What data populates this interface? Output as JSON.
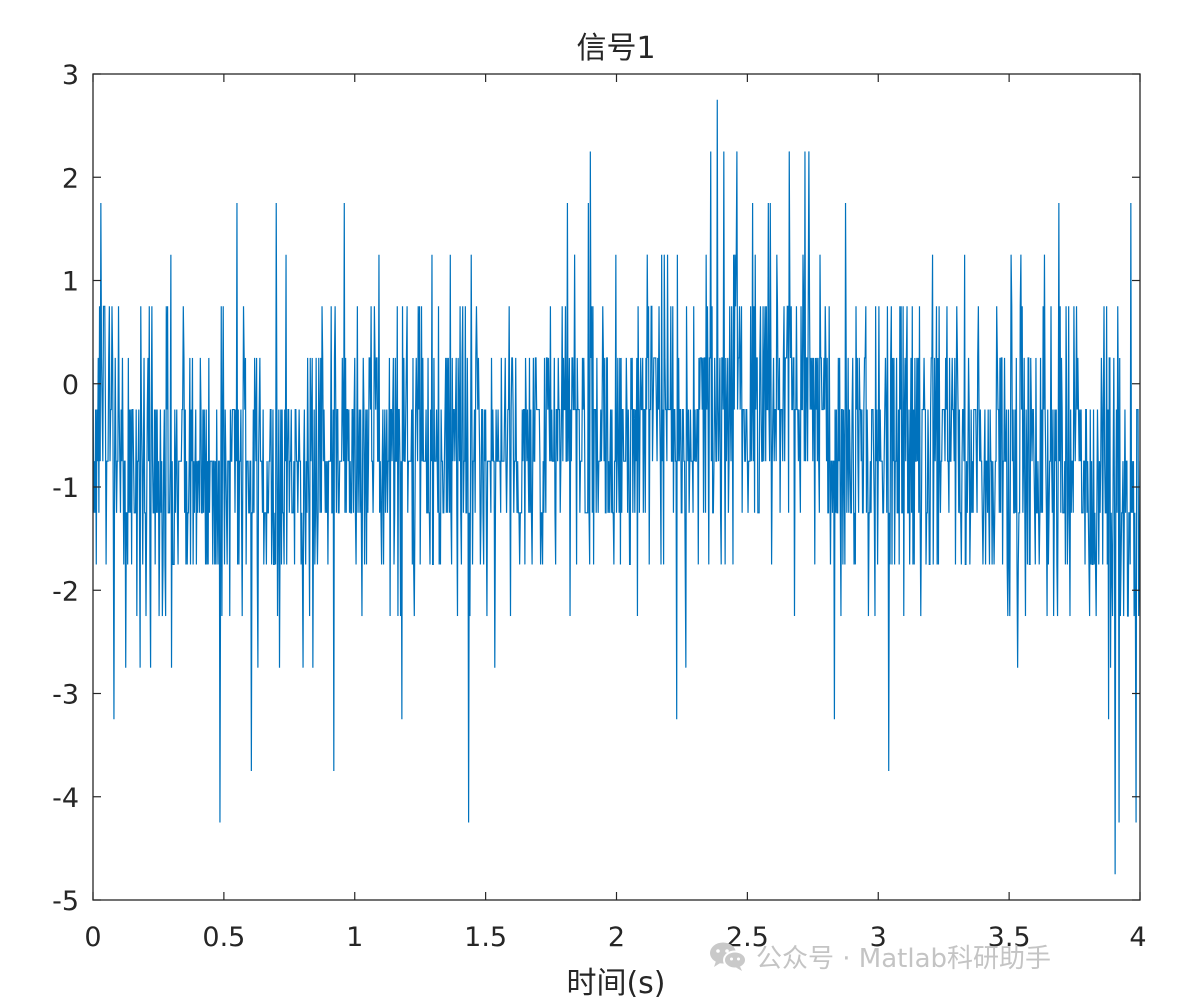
{
  "chart_data": {
    "type": "line",
    "title": "信号1",
    "xlabel": "时间(s)",
    "ylabel": "",
    "xlim": [
      0,
      4
    ],
    "ylim": [
      -5,
      3
    ],
    "x_ticks": [
      "0",
      "0.5",
      "1",
      "1.5",
      "2",
      "2.5",
      "3",
      "3.5",
      "4"
    ],
    "y_ticks": [
      "3",
      "2",
      "1",
      "0",
      "-1",
      "-2",
      "-3",
      "-4",
      "-5"
    ],
    "grid": false,
    "line_color": "#0072BD",
    "sampling": {
      "start": 0,
      "end": 4,
      "count": 1601
    },
    "levels": [
      -4.75,
      -4.25,
      -3.75,
      -3.25,
      -2.75,
      -2.25,
      -1.75,
      -1.25,
      -0.75,
      -0.25,
      0.25,
      0.75,
      1.25,
      1.75,
      2.25,
      2.75
    ],
    "segments": [
      {
        "t0": 0.0,
        "t1": 0.1,
        "mean": -0.3,
        "std": 0.85
      },
      {
        "t0": 0.1,
        "t1": 0.35,
        "mean": -0.95,
        "std": 0.8
      },
      {
        "t0": 0.35,
        "t1": 0.85,
        "mean": -0.85,
        "std": 0.75
      },
      {
        "t0": 0.85,
        "t1": 1.35,
        "mean": -0.55,
        "std": 0.75
      },
      {
        "t0": 1.35,
        "t1": 1.8,
        "mean": -0.6,
        "std": 0.75
      },
      {
        "t0": 1.8,
        "t1": 2.35,
        "mean": -0.35,
        "std": 0.8
      },
      {
        "t0": 2.35,
        "t1": 2.8,
        "mean": -0.1,
        "std": 0.8
      },
      {
        "t0": 2.8,
        "t1": 3.3,
        "mean": -0.6,
        "std": 0.75
      },
      {
        "t0": 3.3,
        "t1": 3.8,
        "mean": -0.65,
        "std": 0.75
      },
      {
        "t0": 3.8,
        "t1": 4.0,
        "mean": -1.0,
        "std": 0.85
      }
    ],
    "spikes": [
      {
        "x": 0.03,
        "y": 1.75
      },
      {
        "x": 0.08,
        "y": -3.25
      },
      {
        "x": 0.22,
        "y": -2.75
      },
      {
        "x": 0.485,
        "y": -4.25
      },
      {
        "x": 0.55,
        "y": 1.75
      },
      {
        "x": 0.605,
        "y": -3.75
      },
      {
        "x": 0.92,
        "y": -3.75
      },
      {
        "x": 0.96,
        "y": 1.75
      },
      {
        "x": 1.18,
        "y": -3.25
      },
      {
        "x": 1.435,
        "y": -4.25
      },
      {
        "x": 1.9,
        "y": 2.25
      },
      {
        "x": 2.23,
        "y": -3.25
      },
      {
        "x": 2.36,
        "y": 2.25
      },
      {
        "x": 2.385,
        "y": 2.75
      },
      {
        "x": 2.41,
        "y": 2.25
      },
      {
        "x": 2.46,
        "y": 2.25
      },
      {
        "x": 2.66,
        "y": 2.25
      },
      {
        "x": 2.72,
        "y": 2.25
      },
      {
        "x": 2.735,
        "y": 2.25
      },
      {
        "x": 3.04,
        "y": -3.75
      },
      {
        "x": 3.69,
        "y": 1.75
      },
      {
        "x": 3.88,
        "y": -3.25
      },
      {
        "x": 3.905,
        "y": -4.75
      },
      {
        "x": 3.92,
        "y": -4.25
      },
      {
        "x": 3.965,
        "y": 1.75
      },
      {
        "x": 3.985,
        "y": -4.25
      }
    ]
  },
  "watermark": {
    "text": "公众号 · Matlab科研助手",
    "icon": "wechat-icon",
    "color": "#c4c4c4"
  }
}
